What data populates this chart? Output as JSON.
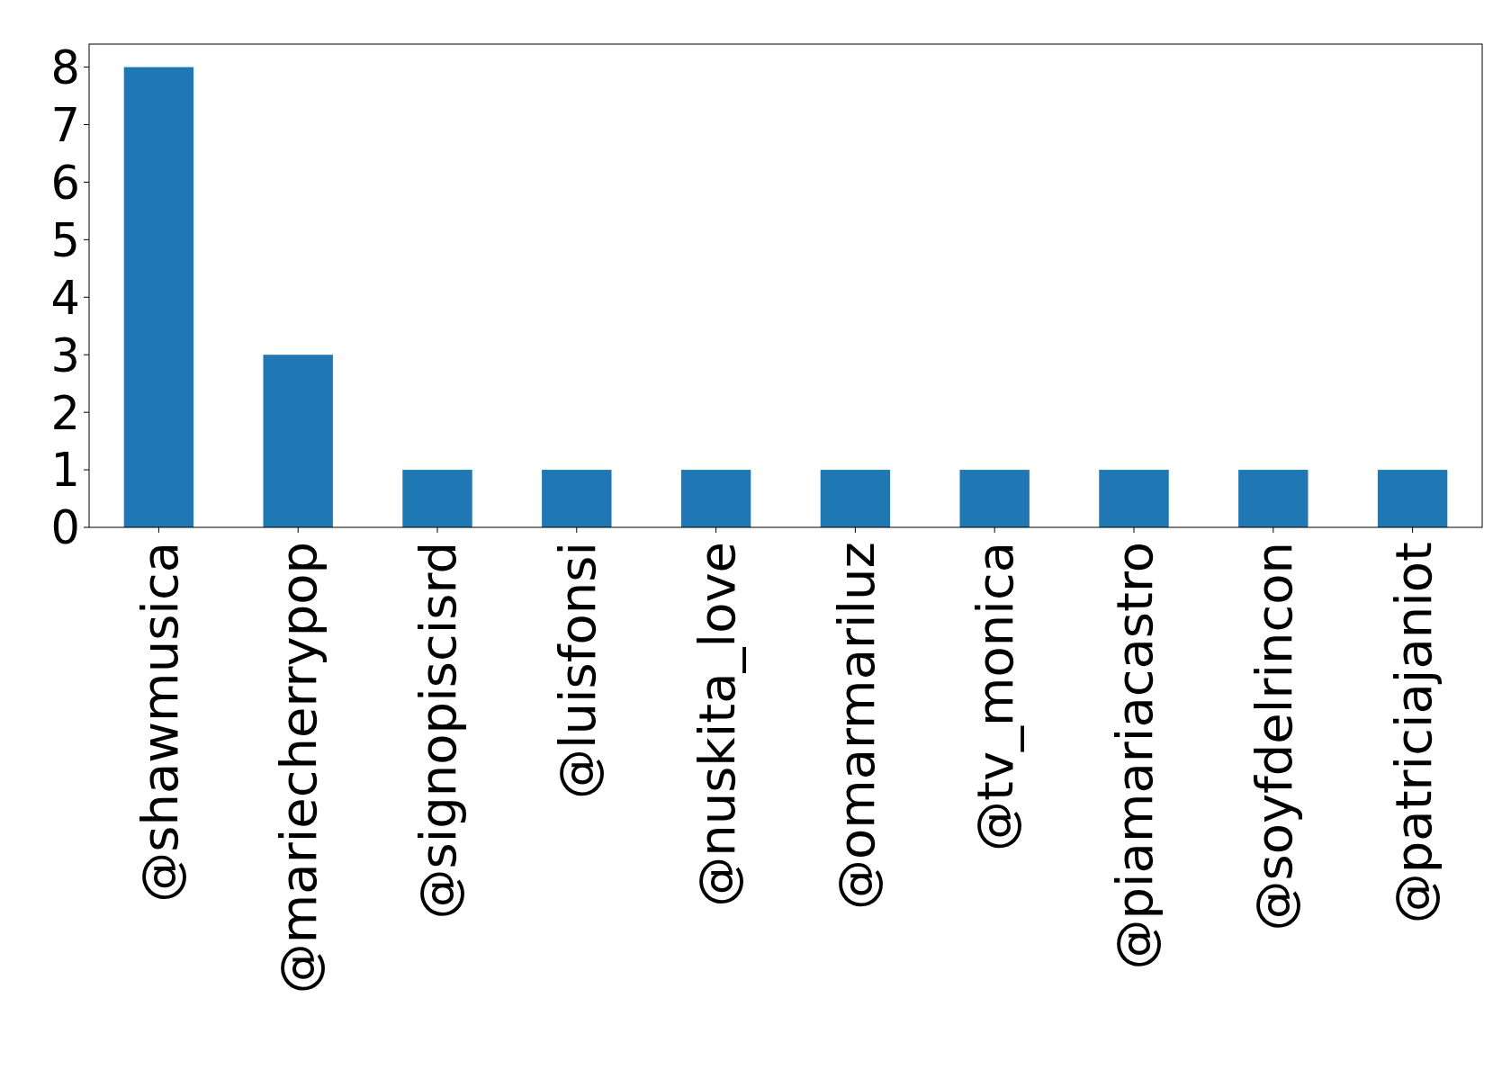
{
  "chart_data": {
    "type": "bar",
    "categories": [
      "@shawmusica",
      "@mariecherrypop",
      "@signopiscisrd",
      "@luisfonsi",
      "@nuskita_love",
      "@omarmariluz",
      "@tv_monica",
      "@piamariacastro",
      "@soyfdelrincon",
      "@patriciajaniot"
    ],
    "values": [
      8,
      3,
      1,
      1,
      1,
      1,
      1,
      1,
      1,
      1
    ],
    "color": "#1f77b4",
    "ylim": [
      0,
      8.4
    ],
    "yticks": [
      0,
      1,
      2,
      3,
      4,
      5,
      6,
      7,
      8
    ],
    "grid": false
  }
}
